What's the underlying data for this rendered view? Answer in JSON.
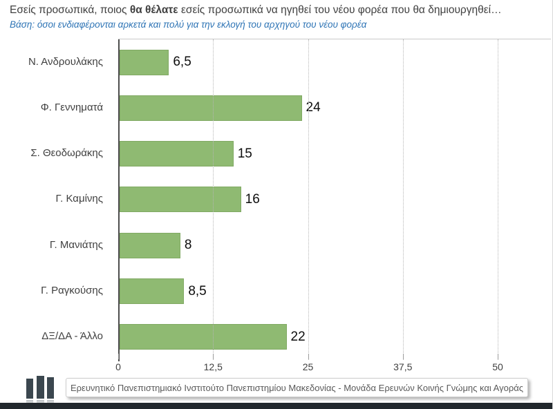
{
  "header": {
    "title_prefix": "Εσείς προσωπικά, ποιος ",
    "title_bold": "θα θέλατε",
    "title_suffix": " εσείς προσωπικά να ηγηθεί του νέου φορέα που θα δημιουργηθεί…",
    "subtitle": "Βάση: όσοι ενδιαφέρονται αρκετά και πολύ για την εκλογή του αρχηγού του νέου φορέα"
  },
  "chart_data": {
    "type": "bar",
    "orientation": "horizontal",
    "title": "Εσείς προσωπικά, ποιος θα θέλατε εσείς προσωπικά να ηγηθεί του νέου φορέα που θα δημιουργηθεί…",
    "subtitle": "Βάση: όσοι ενδιαφέρονται αρκετά και πολύ για την εκλογή του αρχηγού του νέου φορέα",
    "categories": [
      "Ν. Ανδρουλάκης",
      "Φ. Γεννηματά",
      "Σ. Θεοδωράκης",
      "Γ. Καμίνης",
      "Γ. Μανιάτης",
      "Γ. Ραγκούσης",
      "ΔΞ/ΔΑ - Άλλο"
    ],
    "values": [
      6.5,
      24,
      15,
      16,
      8,
      8.5,
      22
    ],
    "value_labels": [
      "6,5",
      "24",
      "15",
      "16",
      "8",
      "8,5",
      "22"
    ],
    "xlim": [
      0,
      50
    ],
    "x_ticks": [
      0,
      12.5,
      25,
      37.5,
      50
    ],
    "x_tick_labels": [
      "0",
      "12,5",
      "25",
      "37,5",
      "50"
    ],
    "grid": "vertical-dotted",
    "legend": "none",
    "bar_color": "#8fba72"
  },
  "footer": {
    "source": "Ερευνητικό Πανεπιστημιακό Ινστιτούτο Πανεπιστημίου Μακεδονίας - Μονάδα Ερευνών Κοινής Γνώμης και Αγοράς"
  },
  "colors": {
    "bar": "#8fba72",
    "title_text": "#3f3f3f",
    "subtitle_text": "#2e74b5",
    "logo": "#3b474f",
    "bottom_strip": "#22282d"
  }
}
